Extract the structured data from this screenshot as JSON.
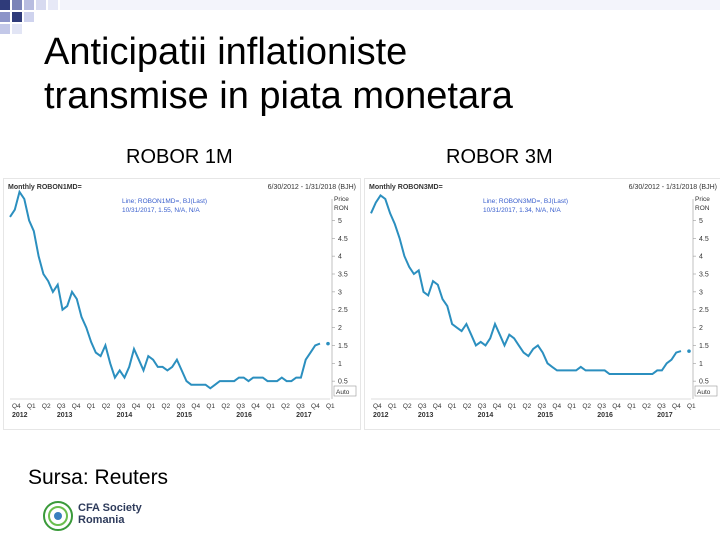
{
  "slide": {
    "title_line1": "Anticipatii inflationiste",
    "title_line2": "transmise in piata monetara",
    "caption_left": "ROBOR 1M",
    "caption_right": "ROBOR 3M",
    "source": "Sursa: Reuters",
    "logo_line1": "CFA Society",
    "logo_line2": "Romania"
  },
  "colors": {
    "line": "#2b8fbf",
    "title": "#000000",
    "legend": "#3a5fcd",
    "logo_green": "#3a9a3a"
  },
  "chart_data": [
    {
      "type": "line",
      "header_left": "Monthly ROBON1MD=",
      "header_right": "6/30/2012 - 1/31/2018 (BJH)",
      "legend_line1": "Line; ROBON1MD=, BJ(Last)",
      "legend_line2": "10/31/2017, 1.55, N/A, N/A",
      "unit_line1": "Price",
      "unit_line2": "RON",
      "auto_label": "Auto",
      "ylim": [
        0,
        5.6
      ],
      "yticks": [
        "5",
        "4.5",
        "4",
        "3.5",
        "3",
        "2.5",
        "2",
        "1.5",
        "1",
        "0.5"
      ],
      "ytick_values": [
        5,
        4.5,
        4,
        3.5,
        3,
        2.5,
        2,
        1.5,
        1,
        0.5
      ],
      "xticks": [
        "Q4",
        "Q1",
        "Q2",
        "Q3",
        "Q4",
        "Q1",
        "Q2",
        "Q3",
        "Q4",
        "Q1",
        "Q2",
        "Q3",
        "Q4",
        "Q1",
        "Q2",
        "Q3",
        "Q4",
        "Q1",
        "Q2",
        "Q3",
        "Q4",
        "Q1"
      ],
      "years": [
        "2012",
        "2013",
        "2014",
        "2015",
        "2016",
        "2017"
      ],
      "x": [
        0,
        1,
        2,
        3,
        4,
        5,
        6,
        7,
        8,
        9,
        10,
        11,
        12,
        13,
        14,
        15,
        16,
        17,
        18,
        19,
        20,
        21,
        22,
        23,
        24,
        25,
        26,
        27,
        28,
        29,
        30,
        31,
        32,
        33,
        34,
        35,
        36,
        37,
        38,
        39,
        40,
        41,
        42,
        43,
        44,
        45,
        46,
        47,
        48,
        49,
        50,
        51,
        52,
        53,
        54,
        55,
        56,
        57,
        58,
        59,
        60,
        61,
        62,
        63,
        64,
        65
      ],
      "values": [
        5.1,
        5.3,
        5.8,
        5.6,
        5.0,
        4.7,
        4.0,
        3.5,
        3.3,
        3.0,
        3.2,
        2.5,
        2.6,
        3.0,
        2.8,
        2.3,
        2.0,
        1.6,
        1.3,
        1.2,
        1.5,
        1.0,
        0.6,
        0.8,
        0.6,
        0.9,
        1.4,
        1.1,
        0.8,
        1.2,
        1.1,
        0.9,
        0.9,
        0.8,
        0.9,
        1.1,
        0.8,
        0.5,
        0.4,
        0.4,
        0.4,
        0.4,
        0.3,
        0.4,
        0.5,
        0.5,
        0.5,
        0.5,
        0.6,
        0.6,
        0.5,
        0.6,
        0.6,
        0.6,
        0.5,
        0.5,
        0.5,
        0.6,
        0.5,
        0.5,
        0.6,
        0.6,
        1.1,
        1.3,
        1.5,
        1.55
      ],
      "last_value": 1.55
    },
    {
      "type": "line",
      "header_left": "Monthly ROBON3MD=",
      "header_right": "6/30/2012 - 1/31/2018 (BJH)",
      "legend_line1": "Line; ROBON3MD=, BJ(Last)",
      "legend_line2": "10/31/2017, 1.34, N/A, N/A",
      "unit_line1": "Price",
      "unit_line2": "RON",
      "auto_label": "Auto",
      "ylim": [
        0,
        5.6
      ],
      "yticks": [
        "5",
        "4.5",
        "4",
        "3.5",
        "3",
        "2.5",
        "2",
        "1.5",
        "1",
        "0.5"
      ],
      "ytick_values": [
        5,
        4.5,
        4,
        3.5,
        3,
        2.5,
        2,
        1.5,
        1,
        0.5
      ],
      "xticks": [
        "Q4",
        "Q1",
        "Q2",
        "Q3",
        "Q4",
        "Q1",
        "Q2",
        "Q3",
        "Q4",
        "Q1",
        "Q2",
        "Q3",
        "Q4",
        "Q1",
        "Q2",
        "Q3",
        "Q4",
        "Q1",
        "Q2",
        "Q3",
        "Q4",
        "Q1"
      ],
      "years": [
        "2012",
        "2013",
        "2014",
        "2015",
        "2016",
        "2017"
      ],
      "x": [
        0,
        1,
        2,
        3,
        4,
        5,
        6,
        7,
        8,
        9,
        10,
        11,
        12,
        13,
        14,
        15,
        16,
        17,
        18,
        19,
        20,
        21,
        22,
        23,
        24,
        25,
        26,
        27,
        28,
        29,
        30,
        31,
        32,
        33,
        34,
        35,
        36,
        37,
        38,
        39,
        40,
        41,
        42,
        43,
        44,
        45,
        46,
        47,
        48,
        49,
        50,
        51,
        52,
        53,
        54,
        55,
        56,
        57,
        58,
        59,
        60,
        61,
        62,
        63,
        64,
        65
      ],
      "values": [
        5.2,
        5.5,
        5.7,
        5.6,
        5.2,
        4.9,
        4.5,
        4.0,
        3.7,
        3.5,
        3.6,
        3.0,
        2.9,
        3.3,
        3.2,
        2.8,
        2.6,
        2.1,
        2.0,
        1.9,
        2.1,
        1.8,
        1.5,
        1.6,
        1.5,
        1.7,
        2.1,
        1.8,
        1.5,
        1.8,
        1.7,
        1.5,
        1.3,
        1.2,
        1.4,
        1.5,
        1.3,
        1.0,
        0.9,
        0.8,
        0.8,
        0.8,
        0.8,
        0.8,
        0.9,
        0.8,
        0.8,
        0.8,
        0.8,
        0.8,
        0.7,
        0.7,
        0.7,
        0.7,
        0.7,
        0.7,
        0.7,
        0.7,
        0.7,
        0.7,
        0.8,
        0.8,
        1.0,
        1.1,
        1.3,
        1.34
      ],
      "last_value": 1.34
    }
  ]
}
